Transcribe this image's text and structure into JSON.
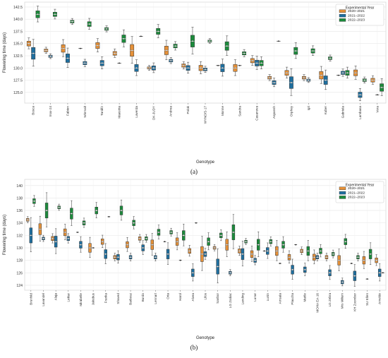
{
  "colors": {
    "2020–2021": "#e69138",
    "2021–2022": "#1f6f9f",
    "2022–2023": "#1c8b3c",
    "grid": "#e6e6e6",
    "axis": "#444444"
  },
  "chart_data": [
    {
      "type": "box",
      "panel_label": "(a)",
      "xlabel": "Genotype",
      "ylabel": "Flowering time (days)",
      "ylim": [
        122.8,
        143.5
      ],
      "yticks": [
        125.0,
        127.5,
        130.0,
        132.5,
        135.0,
        137.5,
        140.0,
        142.5
      ],
      "grid": true,
      "legend": {
        "title": "Experimental Year",
        "placement": "top-right",
        "items": [
          "2020–2021",
          "2021–2022",
          "2022–2023"
        ]
      },
      "categories": [
        "Bosca",
        "Inox-24",
        "Fabien",
        "Winmalt",
        "Tardif2",
        "Maestria",
        "Laverda",
        "DK-JUDY",
        "Andrea",
        "Polok",
        "WYNO/S-17",
        "Monne",
        "Sandra",
        "Casanova",
        "Aspansh",
        "Orphey",
        "Igri",
        "Kuber",
        "Gabriela",
        "Lambasa",
        "Vera"
      ],
      "series": [
        {
          "name": "2020–2021",
          "values": [
            135.0,
            133.6,
            134.0,
            134.0,
            134.6,
            133.0,
            133.6,
            130.0,
            133.6,
            130.5,
            130.0,
            130.5,
            130.0,
            131.5,
            128.0,
            129.0,
            128.0,
            128.5,
            128.5,
            129.0,
            127.5
          ]
        },
        {
          "name": "2021–2022",
          "values": [
            133.0,
            132.4,
            132.0,
            131.0,
            131.0,
            131.0,
            130.0,
            130.0,
            131.5,
            130.0,
            129.7,
            130.0,
            130.5,
            131.0,
            127.0,
            127.0,
            127.5,
            127.5,
            129.0,
            124.5,
            124.5
          ]
        },
        {
          "name": "2022–2023",
          "values": [
            141.0,
            141.0,
            139.5,
            139.0,
            138.0,
            136.0,
            136.5,
            137.5,
            134.5,
            135.5,
            135.5,
            134.5,
            133.0,
            131.0,
            135.5,
            133.5,
            133.5,
            132.0,
            129.0,
            127.5,
            126.0
          ]
        }
      ]
    },
    {
      "type": "box",
      "panel_label": "(b)",
      "xlabel": "Genotype",
      "ylabel": "Flowering time (days)",
      "ylim": [
        123.2,
        141.0
      ],
      "yticks": [
        124,
        126,
        128,
        130,
        132,
        134,
        136,
        138,
        140
      ],
      "grid": true,
      "legend": {
        "title": "Experimental Year",
        "placement": "top-right",
        "items": [
          "2020–2021",
          "2021–2022",
          "2022–2023"
        ]
      },
      "categories": [
        "Brunhild",
        "Lavandel",
        "Alaja",
        "Leikar",
        "Mirabelle",
        "Jakubus",
        "Franka",
        "Shaved",
        "Barbosz",
        "Burdo",
        "Lennart",
        "Oria",
        "Harol",
        "Alvea",
        "Lilos",
        "Sanbor",
        "LG Zodiac",
        "Landing",
        "Lunar",
        "Lunin",
        "Amsala",
        "Plaucha",
        "Mattle",
        "MOHA EA-16",
        "LG Zebra",
        "Mrs Milium",
        "KH Zoombor",
        "SU Ellen",
        "Arnelde"
      ],
      "series": [
        {
          "name": "2020–2021",
          "values": [
            134.5,
            133.0,
            131.5,
            132.5,
            132.5,
            130.0,
            131.0,
            128.5,
            130.5,
            131.5,
            130.5,
            131.0,
            131.0,
            129.5,
            129.0,
            130.0,
            130.5,
            129.5,
            129.0,
            129.5,
            129.5,
            128.5,
            129.5,
            128.5,
            128.5,
            128.0,
            127.5,
            128.0,
            128.0
          ]
        },
        {
          "name": "2021–2022",
          "values": [
            132.0,
            131.5,
            131.0,
            131.5,
            130.5,
            130.0,
            129.0,
            128.5,
            128.5,
            130.0,
            128.5,
            129.0,
            128.0,
            126.0,
            129.0,
            127.0,
            126.0,
            129.0,
            128.0,
            129.5,
            127.5,
            126.5,
            126.5,
            128.5,
            126.0,
            124.5,
            125.5,
            125.0,
            126.0
          ]
        },
        {
          "name": "2022–2023",
          "values": [
            137.5,
            136.0,
            136.5,
            135.5,
            134.0,
            136.0,
            135.0,
            136.0,
            134.0,
            131.5,
            132.5,
            132.5,
            132.0,
            134.0,
            131.0,
            132.0,
            132.5,
            131.0,
            130.5,
            131.0,
            130.5,
            130.5,
            129.5,
            129.5,
            129.0,
            131.0,
            128.5,
            129.0,
            126.0
          ]
        }
      ]
    }
  ]
}
